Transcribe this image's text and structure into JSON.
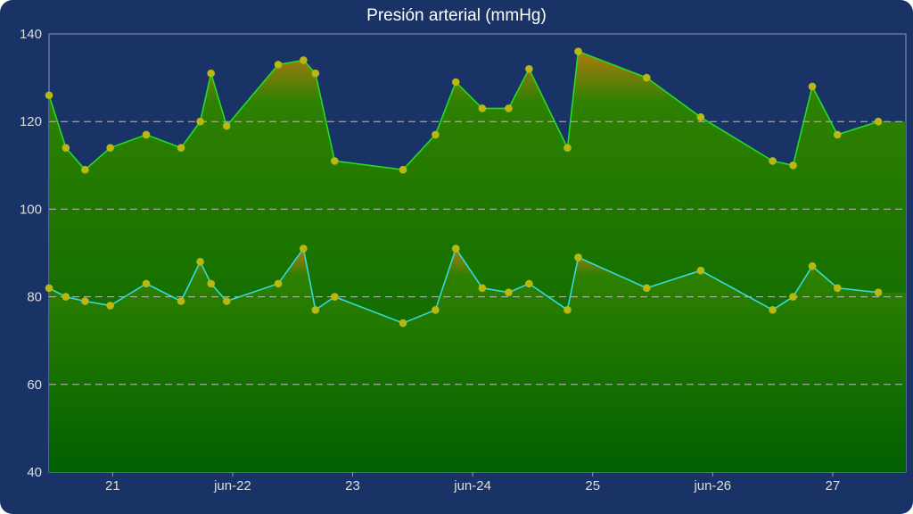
{
  "chart_data": {
    "type": "area",
    "title": "Presión arterial (mmHg)",
    "ylim": [
      40,
      140
    ],
    "yticks": [
      40,
      60,
      80,
      100,
      120,
      140
    ],
    "grid": true,
    "xticks": [
      {
        "x": 20.7,
        "label": "21"
      },
      {
        "x": 21.7,
        "label": "jun-22"
      },
      {
        "x": 22.7,
        "label": "23"
      },
      {
        "x": 23.7,
        "label": "jun-24"
      },
      {
        "x": 24.7,
        "label": "25"
      },
      {
        "x": 25.7,
        "label": "jun-26"
      },
      {
        "x": 26.7,
        "label": "27"
      }
    ],
    "xlim": [
      20.17,
      27.31
    ],
    "series": [
      {
        "line_color": "#22dd22",
        "points": [
          [
            20.17,
            126
          ],
          [
            20.31,
            114
          ],
          [
            20.47,
            109
          ],
          [
            20.68,
            114
          ],
          [
            20.98,
            117
          ],
          [
            21.27,
            114
          ],
          [
            21.43,
            120
          ],
          [
            21.52,
            131
          ],
          [
            21.65,
            119
          ],
          [
            22.08,
            133
          ],
          [
            22.29,
            134
          ],
          [
            22.39,
            131
          ],
          [
            22.55,
            111
          ],
          [
            23.12,
            109
          ],
          [
            23.39,
            117
          ],
          [
            23.56,
            129
          ],
          [
            23.78,
            123
          ],
          [
            24.0,
            123
          ],
          [
            24.17,
            132
          ],
          [
            24.49,
            114
          ],
          [
            24.58,
            136
          ],
          [
            25.15,
            130
          ],
          [
            25.6,
            121
          ],
          [
            26.2,
            111
          ],
          [
            26.37,
            110
          ],
          [
            26.53,
            128
          ],
          [
            26.74,
            117
          ],
          [
            27.08,
            120
          ]
        ]
      },
      {
        "line_color": "#33dddd",
        "points": [
          [
            20.17,
            82
          ],
          [
            20.31,
            80
          ],
          [
            20.47,
            79
          ],
          [
            20.68,
            78
          ],
          [
            20.98,
            83
          ],
          [
            21.27,
            79
          ],
          [
            21.43,
            88
          ],
          [
            21.52,
            83
          ],
          [
            21.65,
            79
          ],
          [
            22.08,
            83
          ],
          [
            22.29,
            91
          ],
          [
            22.39,
            77
          ],
          [
            22.55,
            80
          ],
          [
            23.12,
            74
          ],
          [
            23.39,
            77
          ],
          [
            23.56,
            91
          ],
          [
            23.78,
            82
          ],
          [
            24.0,
            81
          ],
          [
            24.17,
            83
          ],
          [
            24.49,
            77
          ],
          [
            24.58,
            89
          ],
          [
            25.15,
            82
          ],
          [
            25.6,
            86
          ],
          [
            26.2,
            77
          ],
          [
            26.37,
            80
          ],
          [
            26.53,
            87
          ],
          [
            26.74,
            82
          ],
          [
            27.08,
            81
          ]
        ]
      }
    ]
  },
  "colors": {
    "background": "#1a3366",
    "fill_top": "#b07a10",
    "fill_mid": "#2e8000",
    "fill_bottom": "#006000",
    "marker": "#b8b812",
    "grid": "#bbbbbb"
  }
}
